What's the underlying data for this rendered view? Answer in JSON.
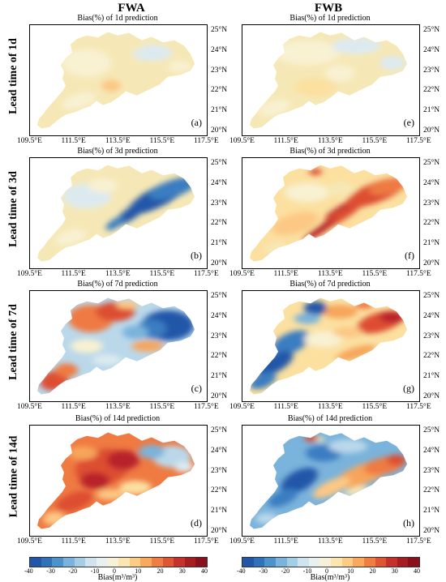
{
  "columns": [
    "FWA",
    "FWB"
  ],
  "rows": [
    "Lead time of 1d",
    "Lead time of 3d",
    "Lead time of 7d",
    "Lead time of 14d"
  ],
  "panels": [
    {
      "label": "(a)",
      "title": "Bias(%) of 1d prediction",
      "scheme": "fwa1"
    },
    {
      "label": "(e)",
      "title": "Bias(%) of 1d prediction",
      "scheme": "fwb1"
    },
    {
      "label": "(b)",
      "title": "Bias(%) of 3d prediction",
      "scheme": "fwa3"
    },
    {
      "label": "(f)",
      "title": "Bias(%) of 3d prediction",
      "scheme": "fwb3"
    },
    {
      "label": "(c)",
      "title": "Bias(%) of 7d prediction",
      "scheme": "fwa7"
    },
    {
      "label": "(g)",
      "title": "Bias(%) of 7d prediction",
      "scheme": "fwb7"
    },
    {
      "label": "(d)",
      "title": "Bias(%) of 14d prediction",
      "scheme": "fwa14"
    },
    {
      "label": "(h)",
      "title": "Bias(%) of 14d prediction",
      "scheme": "fwb14"
    }
  ],
  "x_ticks": [
    "109.5°E",
    "111.5°E",
    "113.5°E",
    "115.5°E",
    "117.5°E"
  ],
  "y_ticks": [
    "25°N",
    "24°N",
    "23°N",
    "22°N",
    "21°N",
    "20°N"
  ],
  "colorbar": {
    "ticks": [
      "-40",
      "-30",
      "-20",
      "-10",
      "0",
      "10",
      "20",
      "30",
      "40"
    ],
    "label": "Bias(m³/m³)",
    "colors": [
      "#2156a8",
      "#2e72ba",
      "#4d93cb",
      "#7ab3db",
      "#a6cde6",
      "#cfe4ef",
      "#e9f1f0",
      "#f6f1d8",
      "#fbe6b0",
      "#fccc84",
      "#f9a85c",
      "#f07e43",
      "#e05533",
      "#c8312b",
      "#a81d22",
      "#8b0f1c"
    ]
  }
}
